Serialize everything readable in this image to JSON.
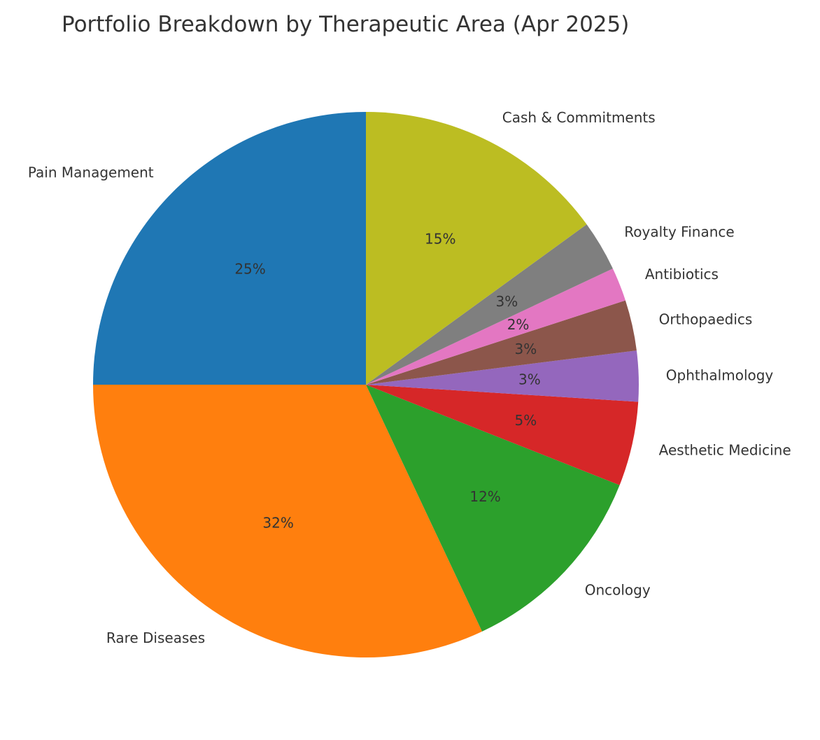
{
  "chart_data": {
    "type": "pie",
    "title": "Portfolio Breakdown by Therapeutic Area (Apr 2025)",
    "start_angle_deg": 90,
    "direction": "counterclockwise",
    "slices": [
      {
        "name": "Pain Management",
        "value": 25,
        "pct_label": "25%",
        "color": "#1f77b4"
      },
      {
        "name": "Rare Diseases",
        "value": 32,
        "pct_label": "32%",
        "color": "#ff7f0e"
      },
      {
        "name": "Oncology",
        "value": 12,
        "pct_label": "12%",
        "color": "#2ca02c"
      },
      {
        "name": "Aesthetic Medicine",
        "value": 5,
        "pct_label": "5%",
        "color": "#d62728"
      },
      {
        "name": "Ophthalmology",
        "value": 3,
        "pct_label": "3%",
        "color": "#9467bd"
      },
      {
        "name": "Orthopaedics",
        "value": 3,
        "pct_label": "3%",
        "color": "#8c564b"
      },
      {
        "name": "Antibiotics",
        "value": 2,
        "pct_label": "2%",
        "color": "#e377c2"
      },
      {
        "name": "Royalty Finance",
        "value": 3,
        "pct_label": "3%",
        "color": "#7f7f7f"
      },
      {
        "name": "Cash & Commitments",
        "value": 15,
        "pct_label": "15%",
        "color": "#bcbd22"
      }
    ]
  }
}
